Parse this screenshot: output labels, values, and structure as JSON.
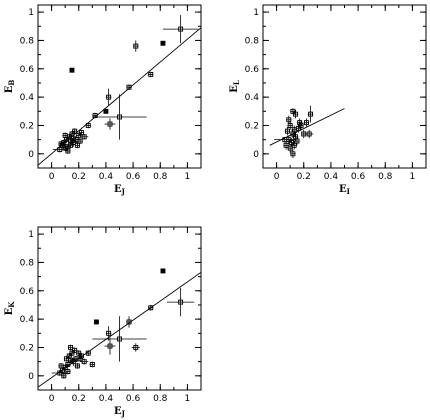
{
  "chart_data": [
    {
      "type": "scatter",
      "xlabel_main": "E",
      "xlabel_sub": "J",
      "ylabel_main": "E",
      "ylabel_sub": "B",
      "xlim": [
        -0.1,
        1.1
      ],
      "ylim": [
        -0.1,
        1.05
      ],
      "xticks": [
        "0",
        "0.2",
        "0.4",
        "0.6",
        "0.8",
        "1"
      ],
      "yticks": [
        "0",
        "0.2",
        "0.4",
        "0.6",
        "0.8",
        "1"
      ],
      "fit_line": [
        [
          -0.1,
          -0.08
        ],
        [
          1.1,
          0.89
        ]
      ],
      "points": [
        {
          "x": 0.95,
          "y": 0.88,
          "ex": 0.13,
          "ey": 0.1,
          "filled": false
        },
        {
          "x": 0.82,
          "y": 0.78,
          "ex": 0.01,
          "ey": 0.01,
          "filled": true
        },
        {
          "x": 0.62,
          "y": 0.76,
          "ex": 0.02,
          "ey": 0.04,
          "filled": false
        },
        {
          "x": 0.73,
          "y": 0.56,
          "ex": 0.02,
          "ey": 0.02,
          "filled": false
        },
        {
          "x": 0.57,
          "y": 0.47,
          "ex": 0.02,
          "ey": 0.02,
          "filled": false
        },
        {
          "x": 0.15,
          "y": 0.59,
          "ex": 0.01,
          "ey": 0.01,
          "filled": true
        },
        {
          "x": 0.5,
          "y": 0.26,
          "ex": 0.2,
          "ey": 0.16,
          "filled": false
        },
        {
          "x": 0.42,
          "y": 0.4,
          "ex": 0.02,
          "ey": 0.06,
          "filled": false
        },
        {
          "x": 0.43,
          "y": 0.21,
          "ex": 0.04,
          "ey": 0.04,
          "filled": false
        },
        {
          "x": 0.4,
          "y": 0.3,
          "ex": 0.01,
          "ey": 0.01,
          "filled": true
        },
        {
          "x": 0.32,
          "y": 0.27,
          "ex": 0.02,
          "ey": 0.02,
          "filled": false
        },
        {
          "x": 0.27,
          "y": 0.2,
          "ex": 0.02,
          "ey": 0.02,
          "filled": false
        },
        {
          "x": 0.22,
          "y": 0.15,
          "ex": 0.02,
          "ey": 0.02,
          "filled": false
        },
        {
          "x": 0.2,
          "y": 0.13,
          "ex": 0.02,
          "ey": 0.02,
          "filled": false
        },
        {
          "x": 0.18,
          "y": 0.1,
          "ex": 0.03,
          "ey": 0.02,
          "filled": false
        },
        {
          "x": 0.16,
          "y": 0.08,
          "ex": 0.03,
          "ey": 0.03,
          "filled": false
        },
        {
          "x": 0.14,
          "y": 0.06,
          "ex": 0.02,
          "ey": 0.02,
          "filled": false
        },
        {
          "x": 0.12,
          "y": 0.05,
          "ex": 0.02,
          "ey": 0.02,
          "filled": false
        },
        {
          "x": 0.1,
          "y": 0.04,
          "ex": 0.02,
          "ey": 0.02,
          "filled": false
        },
        {
          "x": 0.08,
          "y": 0.06,
          "ex": 0.02,
          "ey": 0.02,
          "filled": false
        },
        {
          "x": 0.11,
          "y": 0.1,
          "ex": 0.02,
          "ey": 0.02,
          "filled": false
        },
        {
          "x": 0.13,
          "y": 0.12,
          "ex": 0.02,
          "ey": 0.02,
          "filled": false
        },
        {
          "x": 0.15,
          "y": 0.14,
          "ex": 0.02,
          "ey": 0.02,
          "filled": false
        },
        {
          "x": 0.17,
          "y": 0.16,
          "ex": 0.02,
          "ey": 0.02,
          "filled": false
        },
        {
          "x": 0.09,
          "y": 0.08,
          "ex": 0.02,
          "ey": 0.02,
          "filled": false
        },
        {
          "x": 0.06,
          "y": 0.03,
          "ex": 0.05,
          "ey": 0.02,
          "filled": false
        },
        {
          "x": 0.12,
          "y": 0.02,
          "ex": 0.02,
          "ey": 0.02,
          "filled": false
        },
        {
          "x": 0.19,
          "y": 0.06,
          "ex": 0.02,
          "ey": 0.02,
          "filled": false
        },
        {
          "x": 0.24,
          "y": 0.12,
          "ex": 0.03,
          "ey": 0.02,
          "filled": false
        },
        {
          "x": 0.14,
          "y": 0.09,
          "ex": 0.02,
          "ey": 0.02,
          "filled": false
        },
        {
          "x": 0.1,
          "y": 0.13,
          "ex": 0.02,
          "ey": 0.02,
          "filled": false
        },
        {
          "x": 0.21,
          "y": 0.09,
          "ex": 0.02,
          "ey": 0.02,
          "filled": false
        },
        {
          "x": 0.16,
          "y": 0.11,
          "ex": 0.02,
          "ey": 0.02,
          "filled": false
        },
        {
          "x": 0.07,
          "y": 0.07,
          "ex": 0.02,
          "ey": 0.02,
          "filled": false
        }
      ]
    },
    {
      "type": "scatter",
      "xlabel_main": "E",
      "xlabel_sub": "I",
      "ylabel_main": "E",
      "ylabel_sub": "L",
      "xlim": [
        -0.1,
        1.1
      ],
      "ylim": [
        -0.1,
        1.05
      ],
      "xticks": [
        "0",
        "0.2",
        "0.4",
        "0.6",
        "0.8",
        "1"
      ],
      "yticks": [
        "0",
        "0.2",
        "0.4",
        "0.6",
        "0.8",
        "1"
      ],
      "fit_line": [
        [
          -0.05,
          0.06
        ],
        [
          0.5,
          0.32
        ]
      ],
      "points": [
        {
          "x": 0.12,
          "y": 0.3,
          "ex": 0.02,
          "ey": 0.02,
          "filled": false
        },
        {
          "x": 0.14,
          "y": 0.28,
          "ex": 0.02,
          "ey": 0.03,
          "filled": false
        },
        {
          "x": 0.25,
          "y": 0.28,
          "ex": 0.02,
          "ey": 0.06,
          "filled": false
        },
        {
          "x": 0.22,
          "y": 0.22,
          "ex": 0.02,
          "ey": 0.03,
          "filled": false
        },
        {
          "x": 0.18,
          "y": 0.2,
          "ex": 0.02,
          "ey": 0.03,
          "filled": false
        },
        {
          "x": 0.16,
          "y": 0.18,
          "ex": 0.02,
          "ey": 0.03,
          "filled": false
        },
        {
          "x": 0.1,
          "y": 0.2,
          "ex": 0.02,
          "ey": 0.03,
          "filled": false
        },
        {
          "x": 0.08,
          "y": 0.16,
          "ex": 0.02,
          "ey": 0.03,
          "filled": false
        },
        {
          "x": 0.12,
          "y": 0.14,
          "ex": 0.02,
          "ey": 0.03,
          "filled": false
        },
        {
          "x": 0.14,
          "y": 0.12,
          "ex": 0.02,
          "ey": 0.03,
          "filled": false
        },
        {
          "x": 0.2,
          "y": 0.14,
          "ex": 0.02,
          "ey": 0.03,
          "filled": false
        },
        {
          "x": 0.24,
          "y": 0.14,
          "ex": 0.03,
          "ey": 0.03,
          "filled": false
        },
        {
          "x": 0.09,
          "y": 0.1,
          "ex": 0.02,
          "ey": 0.03,
          "filled": false
        },
        {
          "x": 0.06,
          "y": 0.1,
          "ex": 0.08,
          "ey": 0.02,
          "filled": false
        },
        {
          "x": 0.11,
          "y": 0.08,
          "ex": 0.02,
          "ey": 0.03,
          "filled": false
        },
        {
          "x": 0.13,
          "y": 0.06,
          "ex": 0.02,
          "ey": 0.03,
          "filled": false
        },
        {
          "x": 0.1,
          "y": 0.04,
          "ex": 0.02,
          "ey": 0.03,
          "filled": false
        },
        {
          "x": 0.12,
          "y": 0.0,
          "ex": 0.02,
          "ey": 0.03,
          "filled": false
        },
        {
          "x": 0.07,
          "y": 0.06,
          "ex": 0.02,
          "ey": 0.03,
          "filled": false
        },
        {
          "x": 0.15,
          "y": 0.09,
          "ex": 0.02,
          "ey": 0.03,
          "filled": false
        },
        {
          "x": 0.17,
          "y": 0.22,
          "ex": 0.02,
          "ey": 0.03,
          "filled": false
        },
        {
          "x": 0.09,
          "y": 0.24,
          "ex": 0.02,
          "ey": 0.03,
          "filled": false
        },
        {
          "x": 0.13,
          "y": 0.17,
          "ex": 0.02,
          "ey": 0.03,
          "filled": false
        }
      ]
    },
    {
      "type": "scatter",
      "xlabel_main": "E",
      "xlabel_sub": "J",
      "ylabel_main": "E",
      "ylabel_sub": "K",
      "xlim": [
        -0.1,
        1.1
      ],
      "ylim": [
        -0.1,
        1.05
      ],
      "xticks": [
        "0",
        "0.2",
        "0.4",
        "0.6",
        "0.8",
        "1"
      ],
      "yticks": [
        "0",
        "0.2",
        "0.4",
        "0.6",
        "0.8",
        "1"
      ],
      "fit_line": [
        [
          -0.1,
          -0.08
        ],
        [
          1.1,
          0.73
        ]
      ],
      "points": [
        {
          "x": 0.82,
          "y": 0.74,
          "ex": 0.01,
          "ey": 0.01,
          "filled": true
        },
        {
          "x": 0.95,
          "y": 0.52,
          "ex": 0.1,
          "ey": 0.1,
          "filled": false
        },
        {
          "x": 0.73,
          "y": 0.48,
          "ex": 0.02,
          "ey": 0.02,
          "filled": false
        },
        {
          "x": 0.57,
          "y": 0.38,
          "ex": 0.02,
          "ey": 0.04,
          "filled": false
        },
        {
          "x": 0.62,
          "y": 0.2,
          "ex": 0.03,
          "ey": 0.03,
          "filled": false
        },
        {
          "x": 0.5,
          "y": 0.26,
          "ex": 0.2,
          "ey": 0.16,
          "filled": false
        },
        {
          "x": 0.42,
          "y": 0.3,
          "ex": 0.02,
          "ey": 0.05,
          "filled": false
        },
        {
          "x": 0.43,
          "y": 0.21,
          "ex": 0.04,
          "ey": 0.06,
          "filled": false
        },
        {
          "x": 0.33,
          "y": 0.38,
          "ex": 0.01,
          "ey": 0.01,
          "filled": true
        },
        {
          "x": 0.3,
          "y": 0.08,
          "ex": 0.02,
          "ey": 0.02,
          "filled": false
        },
        {
          "x": 0.27,
          "y": 0.16,
          "ex": 0.02,
          "ey": 0.02,
          "filled": false
        },
        {
          "x": 0.22,
          "y": 0.14,
          "ex": 0.02,
          "ey": 0.02,
          "filled": false
        },
        {
          "x": 0.2,
          "y": 0.16,
          "ex": 0.02,
          "ey": 0.02,
          "filled": false
        },
        {
          "x": 0.18,
          "y": 0.12,
          "ex": 0.03,
          "ey": 0.02,
          "filled": false
        },
        {
          "x": 0.16,
          "y": 0.1,
          "ex": 0.03,
          "ey": 0.03,
          "filled": false
        },
        {
          "x": 0.14,
          "y": 0.2,
          "ex": 0.02,
          "ey": 0.02,
          "filled": false
        },
        {
          "x": 0.12,
          "y": 0.08,
          "ex": 0.02,
          "ey": 0.02,
          "filled": false
        },
        {
          "x": 0.1,
          "y": 0.06,
          "ex": 0.02,
          "ey": 0.02,
          "filled": false
        },
        {
          "x": 0.08,
          "y": 0.04,
          "ex": 0.02,
          "ey": 0.02,
          "filled": false
        },
        {
          "x": 0.11,
          "y": 0.12,
          "ex": 0.02,
          "ey": 0.02,
          "filled": false
        },
        {
          "x": 0.13,
          "y": 0.14,
          "ex": 0.02,
          "ey": 0.02,
          "filled": false
        },
        {
          "x": 0.15,
          "y": 0.16,
          "ex": 0.02,
          "ey": 0.02,
          "filled": false
        },
        {
          "x": 0.17,
          "y": 0.18,
          "ex": 0.02,
          "ey": 0.02,
          "filled": false
        },
        {
          "x": 0.06,
          "y": 0.02,
          "ex": 0.06,
          "ey": 0.02,
          "filled": false
        },
        {
          "x": 0.09,
          "y": 0.0,
          "ex": 0.02,
          "ey": 0.02,
          "filled": false
        },
        {
          "x": 0.12,
          "y": 0.03,
          "ex": 0.02,
          "ey": 0.02,
          "filled": false
        },
        {
          "x": 0.19,
          "y": 0.07,
          "ex": 0.02,
          "ey": 0.02,
          "filled": false
        },
        {
          "x": 0.24,
          "y": 0.1,
          "ex": 0.03,
          "ey": 0.02,
          "filled": false
        },
        {
          "x": 0.14,
          "y": 0.11,
          "ex": 0.02,
          "ey": 0.02,
          "filled": false
        },
        {
          "x": 0.21,
          "y": 0.12,
          "ex": 0.02,
          "ey": 0.02,
          "filled": false
        },
        {
          "x": 0.07,
          "y": 0.07,
          "ex": 0.02,
          "ey": 0.02,
          "filled": false
        }
      ]
    }
  ]
}
